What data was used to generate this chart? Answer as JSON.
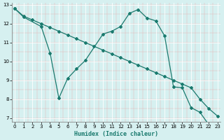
{
  "line1_x": [
    0,
    1,
    2,
    3,
    4,
    5,
    6,
    7,
    8,
    9,
    10,
    11,
    12,
    13,
    14,
    15,
    16,
    17,
    18,
    19,
    20,
    21,
    22,
    23
  ],
  "line1_y": [
    12.8,
    12.4,
    12.2,
    12.0,
    11.8,
    11.6,
    11.4,
    11.2,
    11.0,
    10.8,
    10.6,
    10.4,
    10.2,
    10.0,
    9.8,
    9.6,
    9.4,
    9.2,
    9.0,
    8.8,
    8.6,
    8.0,
    7.5,
    7.1
  ],
  "line2_x": [
    0,
    1,
    3,
    4,
    5,
    6,
    7,
    8,
    10,
    11,
    12,
    13,
    14,
    15,
    16,
    17,
    18,
    19,
    20,
    21,
    22,
    23
  ],
  "line2_y": [
    12.8,
    12.35,
    11.85,
    10.45,
    8.05,
    9.1,
    9.6,
    10.05,
    11.45,
    11.6,
    11.85,
    12.55,
    12.75,
    12.3,
    12.15,
    11.35,
    8.65,
    8.6,
    7.55,
    7.3,
    6.65,
    6.55
  ],
  "line_color": "#1a7a6e",
  "bg_color": "#d6f0f0",
  "grid_color": "#b8dede",
  "grid_major_color": "#ffffff",
  "xlabel": "Humidex (Indice chaleur)",
  "xlim": [
    0,
    23
  ],
  "ylim": [
    6.8,
    13.1
  ],
  "yticks": [
    7,
    8,
    9,
    10,
    11,
    12,
    13
  ],
  "xticks": [
    0,
    1,
    2,
    3,
    4,
    5,
    6,
    7,
    8,
    9,
    10,
    11,
    12,
    13,
    14,
    15,
    16,
    17,
    18,
    19,
    20,
    21,
    22,
    23
  ]
}
